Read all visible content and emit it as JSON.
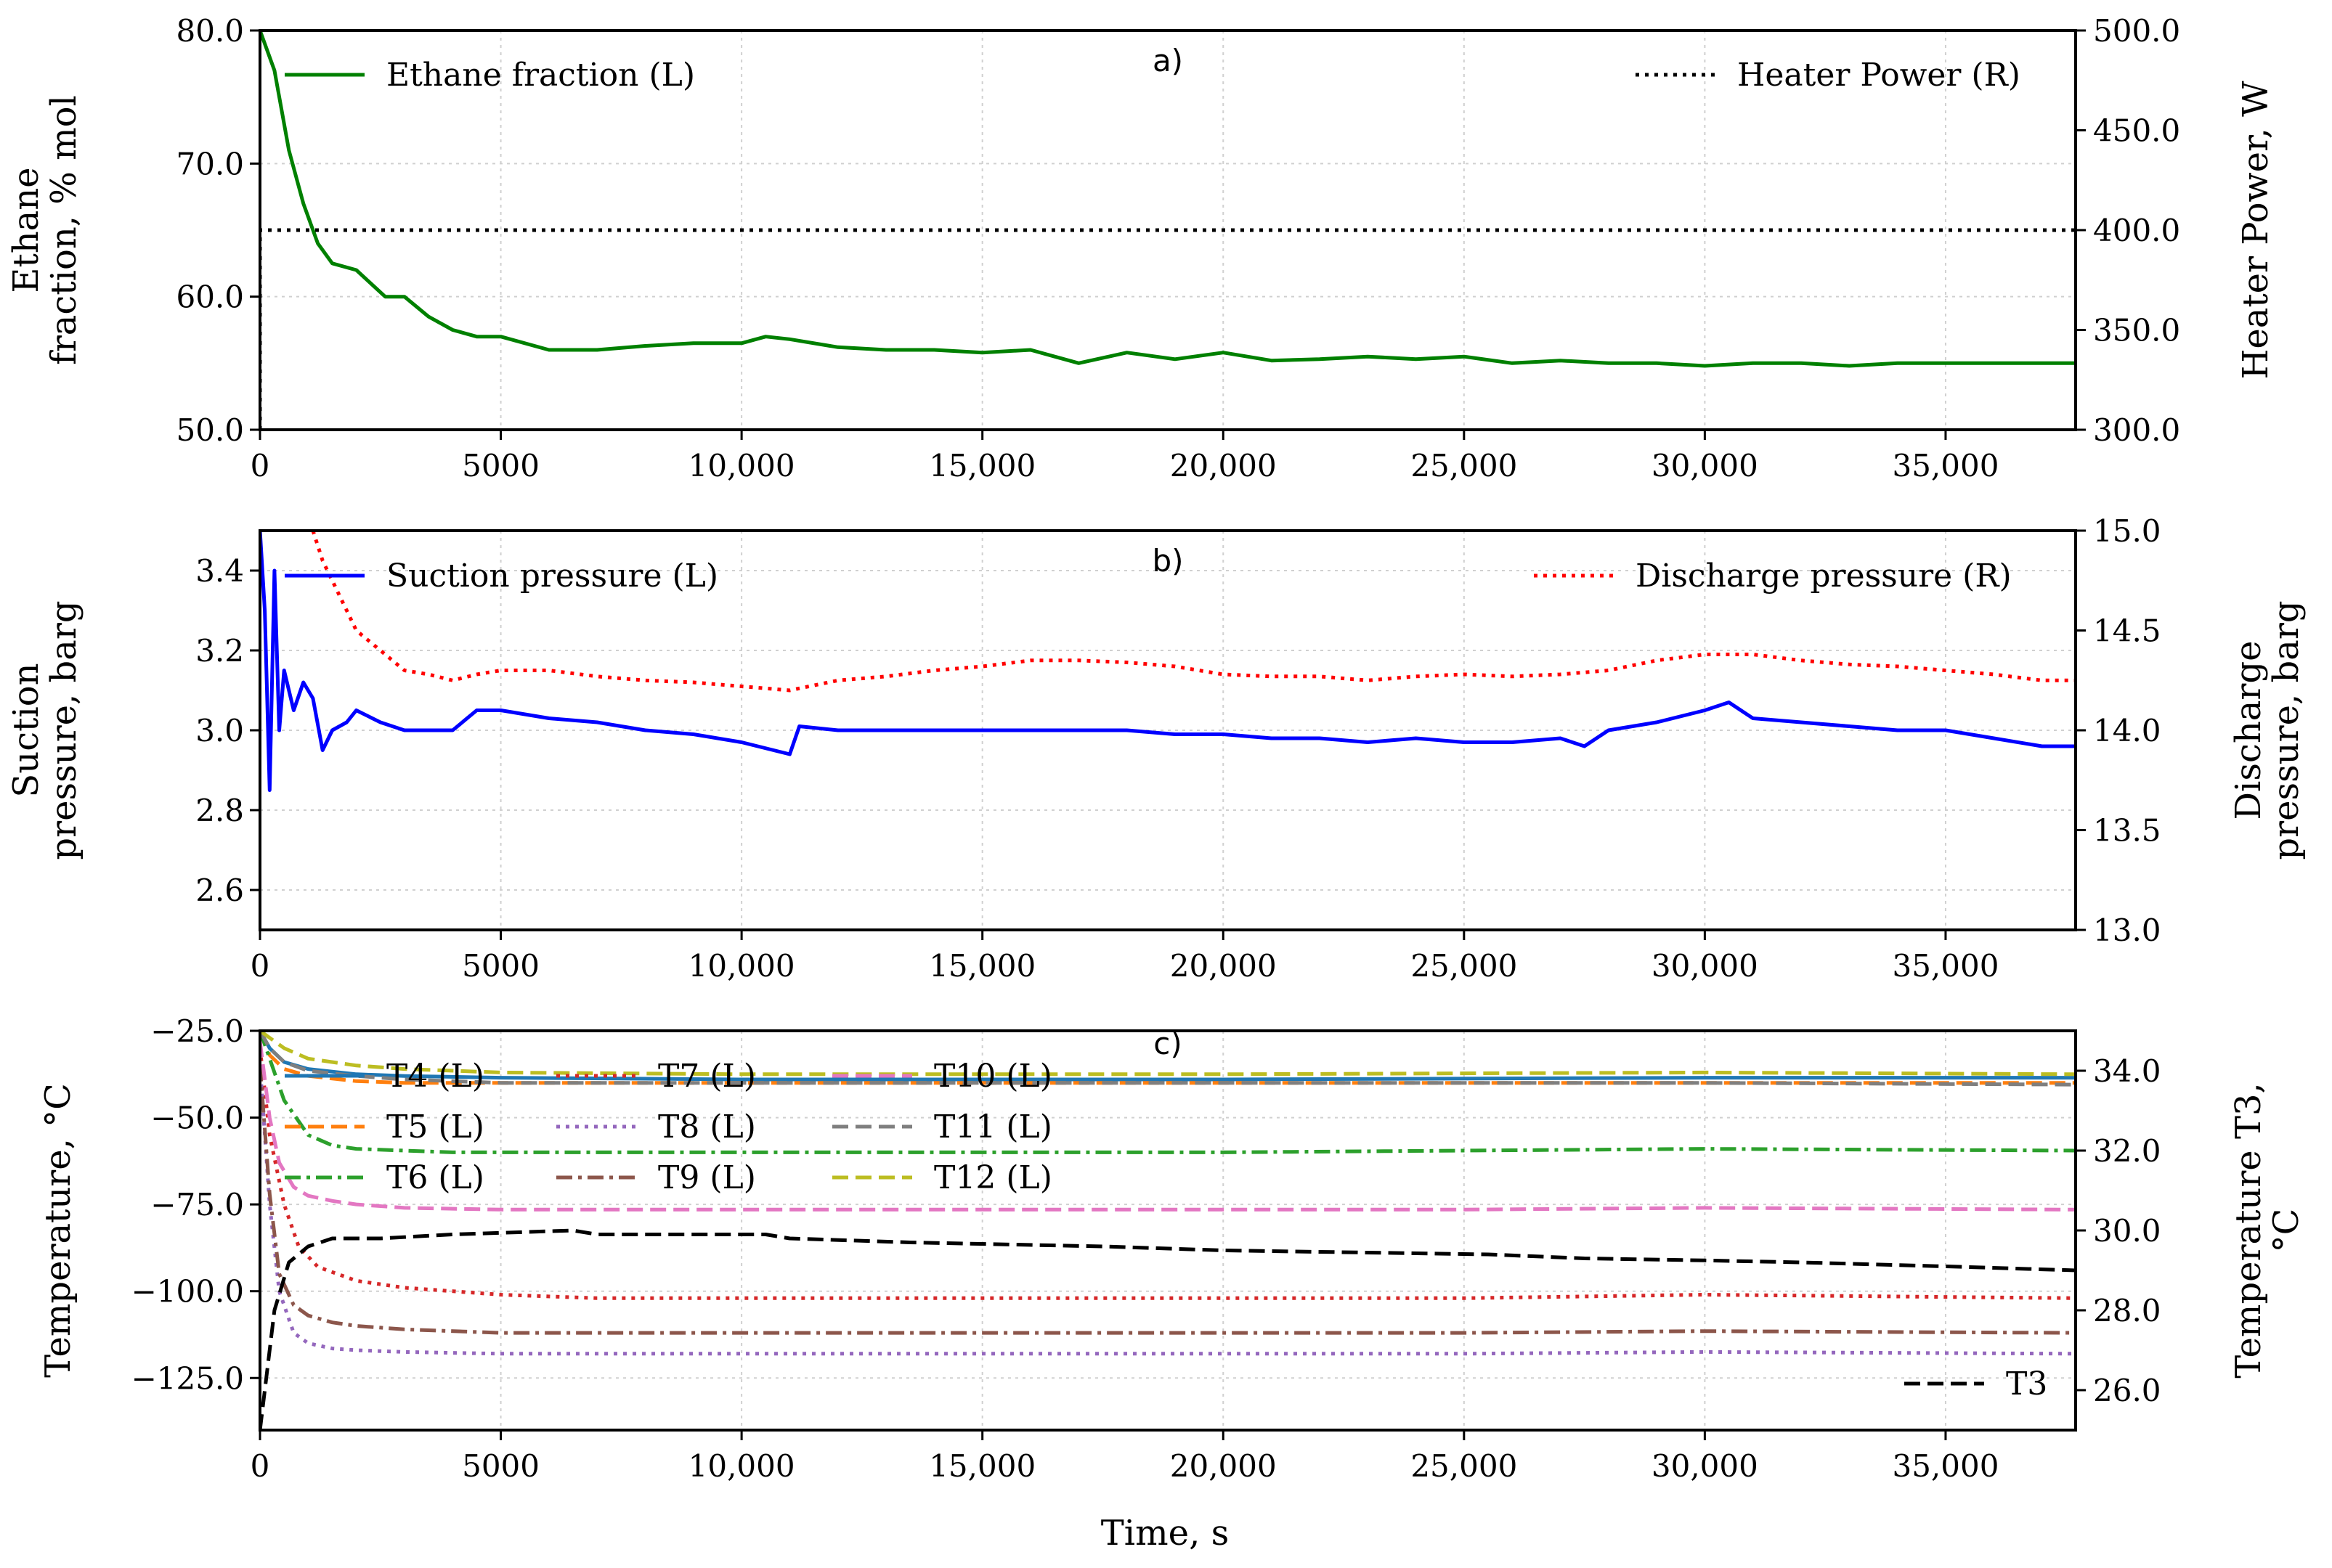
{
  "colors": {
    "ethane": "#008000",
    "heater": "#000000",
    "suction": "#0000ff",
    "discharge": "#ff0000",
    "T3": "#000000",
    "T4": "#1f77b4",
    "T5": "#ff7f0e",
    "T6": "#2ca02c",
    "T7": "#d62728",
    "T8": "#9467bd",
    "T9": "#8c564b",
    "T10": "#e377c2",
    "T11": "#7f7f7f",
    "T12": "#bcbd22"
  },
  "xlabel": "Time, s",
  "chart_data": [
    {
      "type": "line",
      "panel_label": "a)",
      "x_ticks": [
        "0",
        "5000",
        "10,000",
        "15,000",
        "20,000",
        "25,000",
        "30,000",
        "35,000"
      ],
      "xlim": [
        0,
        37700
      ],
      "ylabel_left": [
        "Ethane",
        "fraction, % mol"
      ],
      "ylabel_right": "Heater Power, W",
      "ylim_left": [
        50,
        80
      ],
      "ylim_right": [
        300,
        500
      ],
      "yticks_left": [
        "50.0",
        "60.0",
        "70.0",
        "80.0"
      ],
      "yticks_right": [
        "300.0",
        "350.0",
        "400.0",
        "450.0",
        "500.0"
      ],
      "grid": true,
      "legend": [
        "Ethane fraction (L)",
        "Heater Power (R)"
      ],
      "series": [
        {
          "name": "Ethane fraction (L)",
          "axis": "left",
          "style": "solid",
          "x": [
            0,
            300,
            600,
            900,
            1200,
            1500,
            2000,
            2600,
            3000,
            3500,
            4000,
            4500,
            5000,
            6000,
            7000,
            8000,
            9000,
            10000,
            10500,
            11000,
            12000,
            13000,
            14000,
            15000,
            16000,
            16500,
            17000,
            18000,
            19000,
            20000,
            21000,
            22000,
            23000,
            24000,
            25000,
            26000,
            27000,
            28000,
            29000,
            30000,
            31000,
            32000,
            33000,
            34000,
            35000,
            36000,
            37700
          ],
          "y": [
            80,
            77,
            71,
            67,
            64,
            62.5,
            62,
            60,
            60,
            58.5,
            57.5,
            57,
            57,
            56,
            56,
            56.3,
            56.5,
            56.5,
            57,
            56.8,
            56.2,
            56,
            56,
            55.8,
            56,
            55.5,
            55,
            55.8,
            55.3,
            55.8,
            55.2,
            55.3,
            55.5,
            55.3,
            55.5,
            55,
            55.2,
            55,
            55,
            54.8,
            55,
            55,
            54.8,
            55,
            55,
            55,
            55
          ]
        },
        {
          "name": "Heater Power (R)",
          "axis": "right",
          "style": "dotted",
          "x": [
            0,
            0,
            37700
          ],
          "y": [
            300,
            400,
            400
          ]
        }
      ]
    },
    {
      "type": "line",
      "panel_label": "b)",
      "x_ticks": [
        "0",
        "5000",
        "10,000",
        "15,000",
        "20,000",
        "25,000",
        "30,000",
        "35,000"
      ],
      "xlim": [
        0,
        37700
      ],
      "ylabel_left": [
        "Suction",
        "pressure, barg"
      ],
      "ylabel_right": [
        "Discharge",
        "pressure, barg"
      ],
      "ylim_left": [
        2.5,
        3.5
      ],
      "ylim_right": [
        13.0,
        15.0
      ],
      "yticks_left": [
        "2.6",
        "2.8",
        "3.0",
        "3.2",
        "3.4"
      ],
      "yticks_right": [
        "13.0",
        "13.5",
        "14.0",
        "14.5",
        "15.0"
      ],
      "grid": true,
      "legend": [
        "Suction pressure (L)",
        "Discharge pressure (R)"
      ],
      "series": [
        {
          "name": "Suction pressure (L)",
          "axis": "left",
          "style": "solid",
          "x": [
            0,
            100,
            200,
            300,
            400,
            500,
            700,
            900,
            1100,
            1300,
            1500,
            1800,
            2000,
            2500,
            3000,
            3500,
            4000,
            4500,
            5000,
            6000,
            7000,
            8000,
            9000,
            10000,
            11000,
            11200,
            12000,
            13000,
            14000,
            15000,
            16000,
            17000,
            18000,
            19000,
            20000,
            21000,
            22000,
            23000,
            24000,
            25000,
            26000,
            27000,
            27500,
            28000,
            29000,
            30000,
            30500,
            31000,
            32000,
            33000,
            34000,
            35000,
            36000,
            37000,
            37700
          ],
          "y": [
            3.5,
            3.3,
            2.85,
            3.4,
            3.0,
            3.15,
            3.05,
            3.12,
            3.08,
            2.95,
            3.0,
            3.02,
            3.05,
            3.02,
            3.0,
            3.0,
            3.0,
            3.05,
            3.05,
            3.03,
            3.02,
            3.0,
            2.99,
            2.97,
            2.94,
            3.01,
            3.0,
            3.0,
            3.0,
            3.0,
            3.0,
            3.0,
            3.0,
            2.99,
            2.99,
            2.98,
            2.98,
            2.97,
            2.98,
            2.97,
            2.97,
            2.98,
            2.96,
            3.0,
            3.02,
            3.05,
            3.07,
            3.03,
            3.02,
            3.01,
            3.0,
            3.0,
            2.98,
            2.96,
            2.96
          ]
        },
        {
          "name": "Discharge pressure (R)",
          "axis": "right",
          "style": "dotted",
          "x": [
            1100,
            1300,
            1500,
            1800,
            2000,
            2500,
            3000,
            3500,
            4000,
            4500,
            5000,
            6000,
            7000,
            8000,
            9000,
            10000,
            11000,
            12000,
            13000,
            14000,
            15000,
            16000,
            17000,
            18000,
            19000,
            20000,
            21000,
            22000,
            23000,
            24000,
            25000,
            26000,
            27000,
            28000,
            29000,
            30000,
            31000,
            32000,
            33000,
            34000,
            35000,
            36000,
            37000,
            37700
          ],
          "y": [
            15.0,
            14.85,
            14.75,
            14.6,
            14.5,
            14.4,
            14.3,
            14.28,
            14.25,
            14.28,
            14.3,
            14.3,
            14.27,
            14.25,
            14.24,
            14.22,
            14.2,
            14.25,
            14.27,
            14.3,
            14.32,
            14.35,
            14.35,
            14.34,
            14.32,
            14.28,
            14.27,
            14.27,
            14.25,
            14.27,
            14.28,
            14.27,
            14.28,
            14.3,
            14.35,
            14.38,
            14.38,
            14.35,
            14.33,
            14.32,
            14.3,
            14.28,
            14.25,
            14.25
          ]
        }
      ]
    },
    {
      "type": "line",
      "panel_label": "c)",
      "x_ticks": [
        "0",
        "5000",
        "10,000",
        "15,000",
        "20,000",
        "25,000",
        "30,000",
        "35,000"
      ],
      "xlim": [
        0,
        37700
      ],
      "ylabel_left": [
        "Temperature, °C"
      ],
      "ylabel_right": [
        "Temperature T3,",
        "°C"
      ],
      "ylim_left": [
        -140,
        -25
      ],
      "ylim_right": [
        25,
        35
      ],
      "yticks_left": [
        "-125.0",
        "-100.0",
        "-75.0",
        "-50.0",
        "-25.0"
      ],
      "yticks_right": [
        "26.0",
        "28.0",
        "30.0",
        "32.0",
        "34.0"
      ],
      "grid": true,
      "legend": [
        "T4 (L)",
        "T5 (L)",
        "T6 (L)",
        "T7 (L)",
        "T8 (L)",
        "T9 (L)",
        "T10 (L)",
        "T11 (L)",
        "T12 (L)",
        "T3"
      ],
      "series": [
        {
          "name": "T4 (L)",
          "axis": "left",
          "style": "solid",
          "x": [
            0,
            200,
            500,
            1000,
            2000,
            3000,
            5000,
            10000,
            20000,
            30000,
            37700
          ],
          "y": [
            -25,
            -30,
            -34,
            -36,
            -37.5,
            -38,
            -38.5,
            -39,
            -39,
            -38.5,
            -38.5
          ]
        },
        {
          "name": "T5 (L)",
          "axis": "left",
          "style": "dashed",
          "x": [
            0,
            200,
            500,
            1000,
            2000,
            3000,
            5000,
            10000,
            20000,
            30000,
            37700
          ],
          "y": [
            -25,
            -32,
            -36,
            -38,
            -39.5,
            -40,
            -40,
            -40,
            -40,
            -40,
            -40
          ]
        },
        {
          "name": "T6 (L)",
          "axis": "left",
          "style": "dashdot",
          "x": [
            0,
            200,
            500,
            1000,
            1500,
            2000,
            3000,
            4000,
            6000,
            10000,
            15000,
            20000,
            25000,
            30000,
            37700
          ],
          "y": [
            -25,
            -33,
            -45,
            -55,
            -58,
            -59,
            -59.5,
            -60,
            -60,
            -60,
            -60,
            -60,
            -59.5,
            -59,
            -59.5
          ]
        },
        {
          "name": "T7 (L)",
          "axis": "left",
          "style": "dotted",
          "x": [
            0,
            200,
            500,
            800,
            1200,
            2000,
            3000,
            5000,
            7000,
            10000,
            15000,
            20000,
            25000,
            30000,
            37700
          ],
          "y": [
            -30,
            -55,
            -75,
            -87,
            -93,
            -97,
            -99,
            -101,
            -102,
            -102,
            -102,
            -102,
            -102,
            -101,
            -102
          ]
        },
        {
          "name": "T8 (L)",
          "axis": "left",
          "style": "dotted",
          "x": [
            0,
            200,
            400,
            700,
            1000,
            1500,
            2000,
            3000,
            5000,
            10000,
            15000,
            20000,
            25000,
            30000,
            37700
          ],
          "y": [
            -35,
            -75,
            -100,
            -112,
            -115,
            -116.5,
            -117,
            -117.5,
            -118,
            -118,
            -118,
            -118,
            -118,
            -117.5,
            -118
          ]
        },
        {
          "name": "T9 (L)",
          "axis": "left",
          "style": "dashdot",
          "x": [
            0,
            200,
            400,
            700,
            1000,
            1500,
            2000,
            3000,
            5000,
            10000,
            15000,
            20000,
            25000,
            30000,
            37700
          ],
          "y": [
            -35,
            -72,
            -95,
            -104,
            -107,
            -109,
            -110,
            -111,
            -112,
            -112,
            -112,
            -112,
            -112,
            -111.5,
            -112
          ]
        },
        {
          "name": "T10 (L)",
          "axis": "left",
          "style": "dashed",
          "x": [
            0,
            200,
            400,
            700,
            1000,
            1500,
            2000,
            3000,
            5000,
            10000,
            15000,
            20000,
            25000,
            30000,
            37700
          ],
          "y": [
            -28,
            -50,
            -63,
            -70,
            -72.5,
            -74,
            -75,
            -76,
            -76.5,
            -76.5,
            -76.5,
            -76.5,
            -76.5,
            -76,
            -76.5
          ]
        },
        {
          "name": "T11 (L)",
          "axis": "left",
          "style": "dashed",
          "x": [
            0,
            200,
            500,
            1000,
            2000,
            3000,
            5000,
            10000,
            20000,
            30000,
            37700
          ],
          "y": [
            -25,
            -30,
            -34,
            -36.5,
            -38,
            -39,
            -40,
            -40,
            -40,
            -40,
            -40.5
          ]
        },
        {
          "name": "T12 (L)",
          "axis": "left",
          "style": "dashed",
          "x": [
            0,
            200,
            500,
            1000,
            2000,
            3000,
            5000,
            10000,
            20000,
            30000,
            37700
          ],
          "y": [
            -25,
            -27,
            -30,
            -33,
            -35,
            -36,
            -37,
            -37.5,
            -37.5,
            -37,
            -37.5
          ]
        },
        {
          "name": "T3",
          "axis": "right",
          "style": "dashed",
          "x": [
            0,
            300,
            600,
            1000,
            1500,
            2500,
            4000,
            6500,
            7000,
            10500,
            11000,
            13500,
            17500,
            20000,
            25500,
            27500,
            30000,
            32000,
            35000,
            37700
          ],
          "y": [
            25,
            28,
            29.2,
            29.6,
            29.8,
            29.8,
            29.9,
            30.0,
            29.9,
            29.9,
            29.8,
            29.7,
            29.6,
            29.5,
            29.4,
            29.3,
            29.25,
            29.2,
            29.1,
            29.0
          ]
        }
      ]
    }
  ]
}
